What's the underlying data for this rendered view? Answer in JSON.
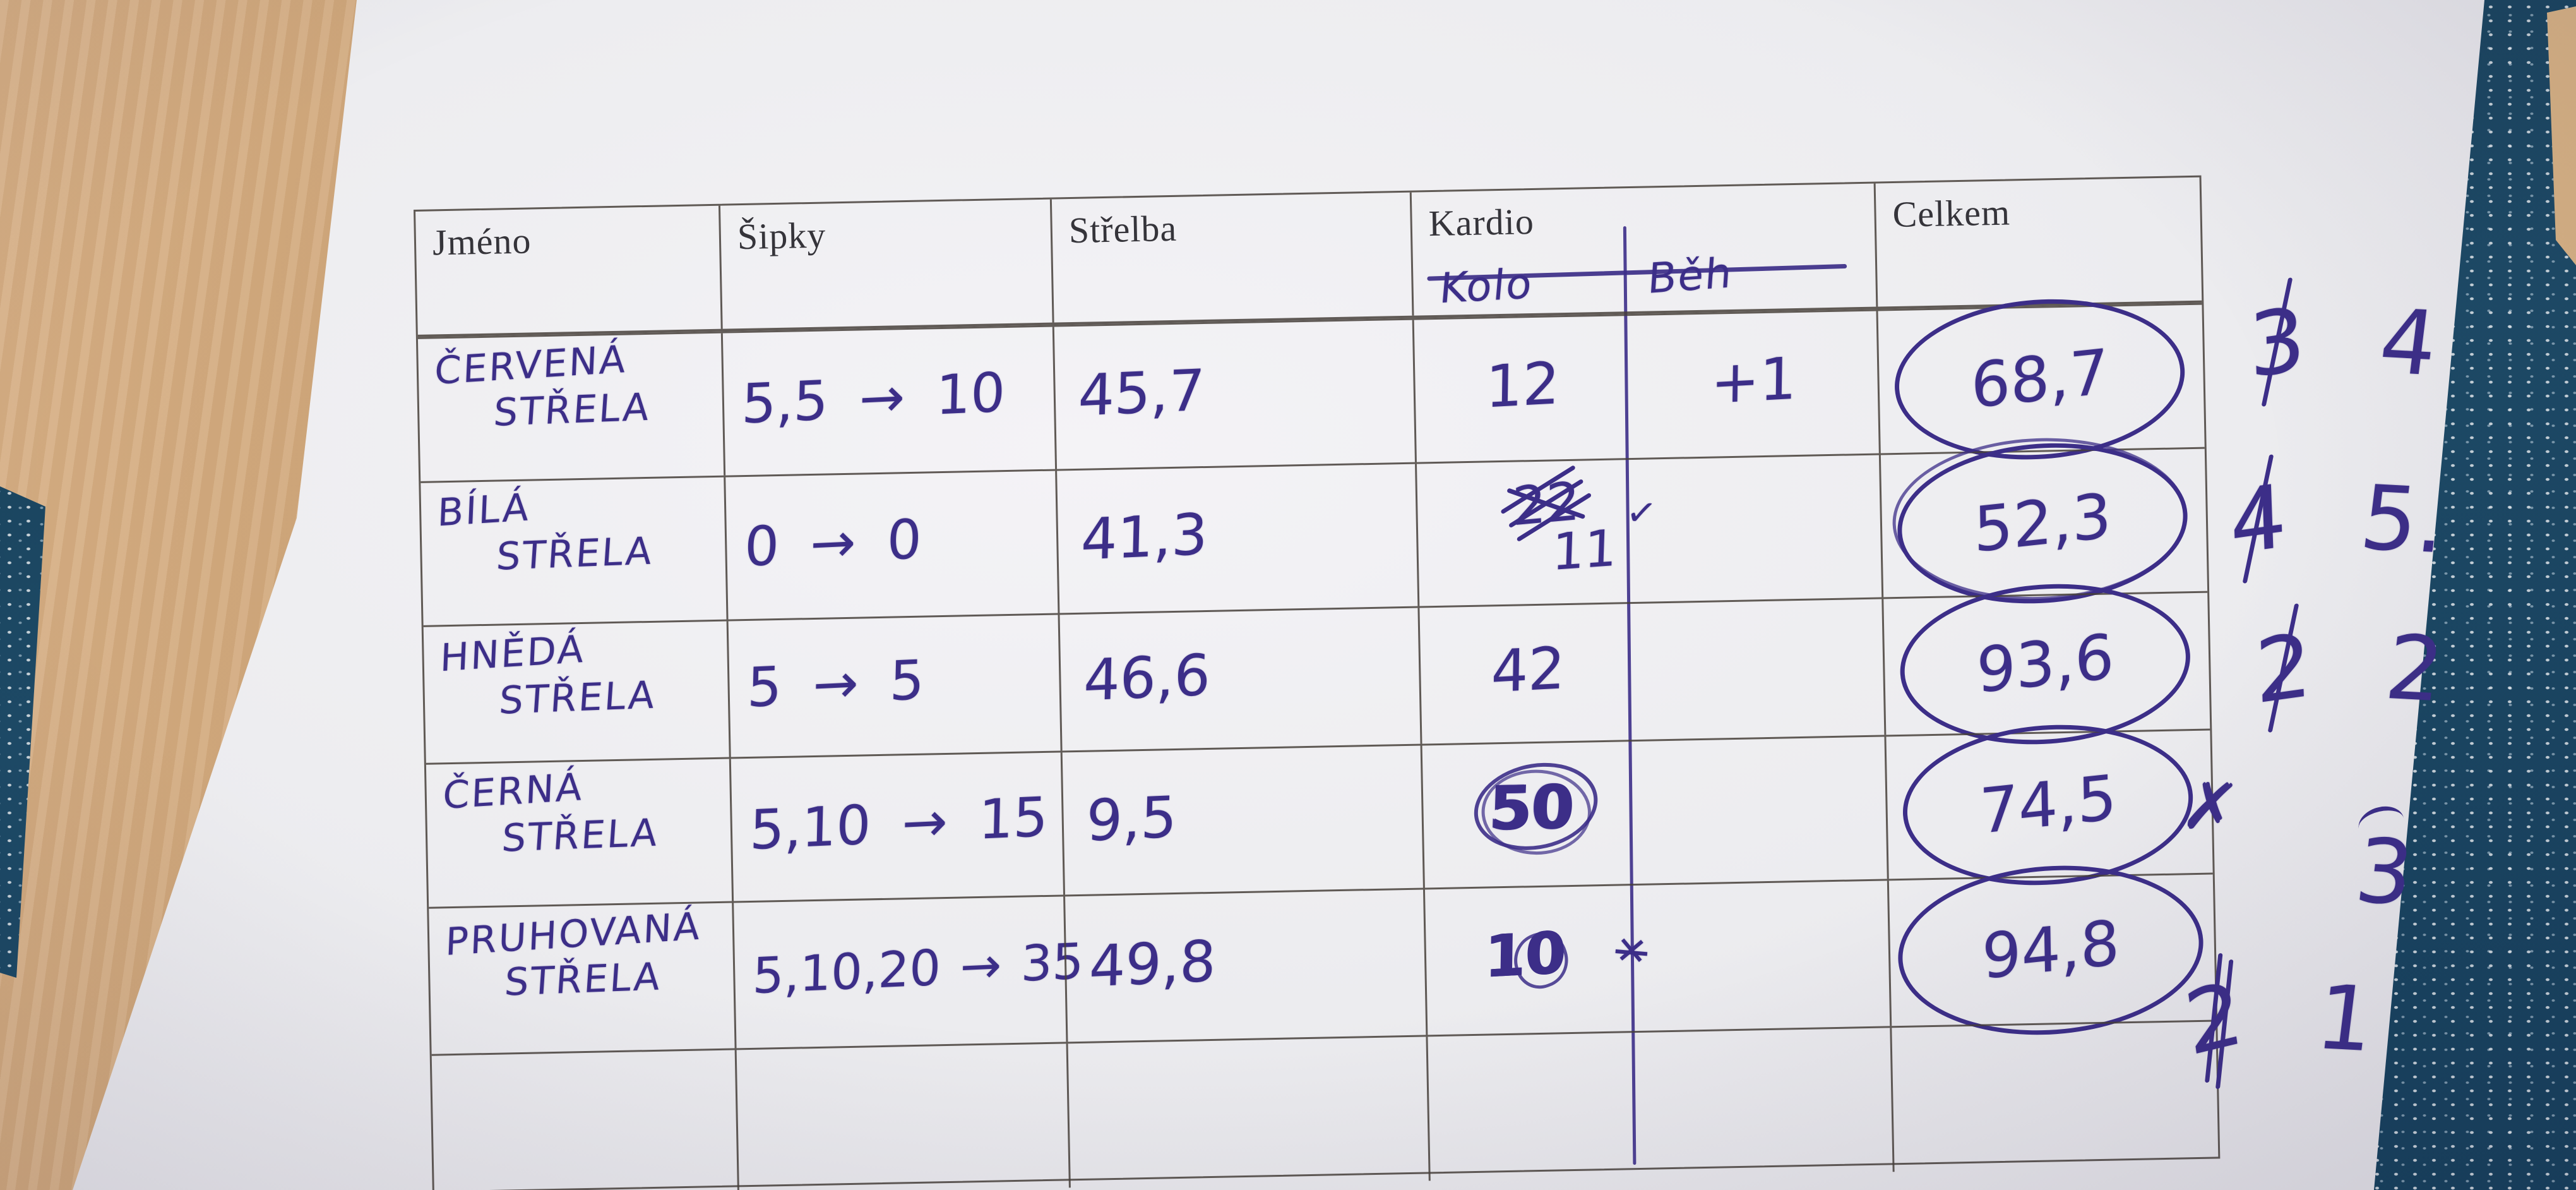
{
  "colors": {
    "ink": "#3c2e88",
    "paper": "#ededf0",
    "table_line": "#55504a",
    "wood": "#cda87e",
    "fabric": "#1c4763"
  },
  "header": {
    "jmeno": "Jméno",
    "sipky": "Šipky",
    "strelba": "Střelba",
    "kardio": "Kardio",
    "celkem": "Celkem",
    "kardio_sub_left": "Kolo",
    "kardio_sub_right": "Běh"
  },
  "rows": [
    {
      "name_line1": "ČERVENÁ",
      "name_line2": "STŘELA",
      "sipky": "5,5 → 10",
      "strelba": "45,7",
      "kardio_kolo": "12",
      "kardio_beh": "+1",
      "celkem": "68,7",
      "rank_crossed": "3",
      "rank_final": "4"
    },
    {
      "name_line1": "BÍLÁ",
      "name_line2": "STŘELA",
      "sipky": "0 → 0",
      "strelba": "41,3",
      "kardio_crossed": "22",
      "kardio_corrected": "11",
      "kardio_mark": "✓",
      "celkem": "52,3",
      "rank_crossed": "4",
      "rank_final": "5."
    },
    {
      "name_line1": "HNĚDÁ",
      "name_line2": "STŘELA",
      "sipky": "5 → 5",
      "strelba": "46,6",
      "kardio_kolo": "42",
      "celkem": "93,6",
      "rank_crossed": "2",
      "rank_final": "2"
    },
    {
      "name_line1": "ČERNÁ",
      "name_line2": "STŘELA",
      "sipky": "5,10 → 15",
      "strelba": "9,5",
      "kardio_kolo": "50",
      "celkem": "74,5",
      "celkem_mark": "✗",
      "rank_final": "3"
    },
    {
      "name_line1": "PRUHOVANÁ",
      "name_line2": "STŘELA",
      "sipky": "5,10,20 → 35",
      "strelba": "49,8",
      "kardio_kolo": "10",
      "kardio_mark": "✕",
      "celkem": "94,8",
      "rank_crossed": "2",
      "rank_final": "1"
    }
  ]
}
